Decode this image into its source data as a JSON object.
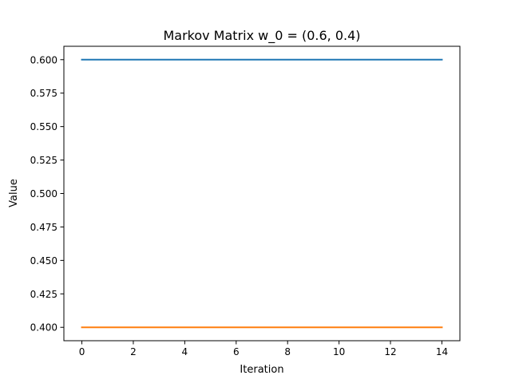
{
  "chart_data": {
    "type": "line",
    "title": "Markov Matrix w_0 = (0.6, 0.4)",
    "xlabel": "Iteration",
    "ylabel": "Value",
    "x": [
      0,
      1,
      2,
      3,
      4,
      5,
      6,
      7,
      8,
      9,
      10,
      11,
      12,
      13,
      14
    ],
    "series": [
      {
        "color": "#1f77b4",
        "values": [
          0.6,
          0.6,
          0.6,
          0.6,
          0.6,
          0.6,
          0.6,
          0.6,
          0.6,
          0.6,
          0.6,
          0.6,
          0.6,
          0.6,
          0.6
        ]
      },
      {
        "color": "#ff7f0e",
        "values": [
          0.4,
          0.4,
          0.4,
          0.4,
          0.4,
          0.4,
          0.4,
          0.4,
          0.4,
          0.4,
          0.4,
          0.4,
          0.4,
          0.4,
          0.4
        ]
      }
    ],
    "xlim": [
      -0.7,
      14.7
    ],
    "ylim": [
      0.39,
      0.61
    ],
    "xticks": [
      0,
      2,
      4,
      6,
      8,
      10,
      12,
      14
    ],
    "xtick_labels": [
      "0",
      "2",
      "4",
      "6",
      "8",
      "10",
      "12",
      "14"
    ],
    "yticks": [
      0.4,
      0.425,
      0.45,
      0.475,
      0.5,
      0.525,
      0.55,
      0.575,
      0.6
    ],
    "ytick_labels": [
      "0.400",
      "0.425",
      "0.450",
      "0.475",
      "0.500",
      "0.525",
      "0.550",
      "0.575",
      "0.600"
    ],
    "grid": false,
    "legend": "none"
  }
}
